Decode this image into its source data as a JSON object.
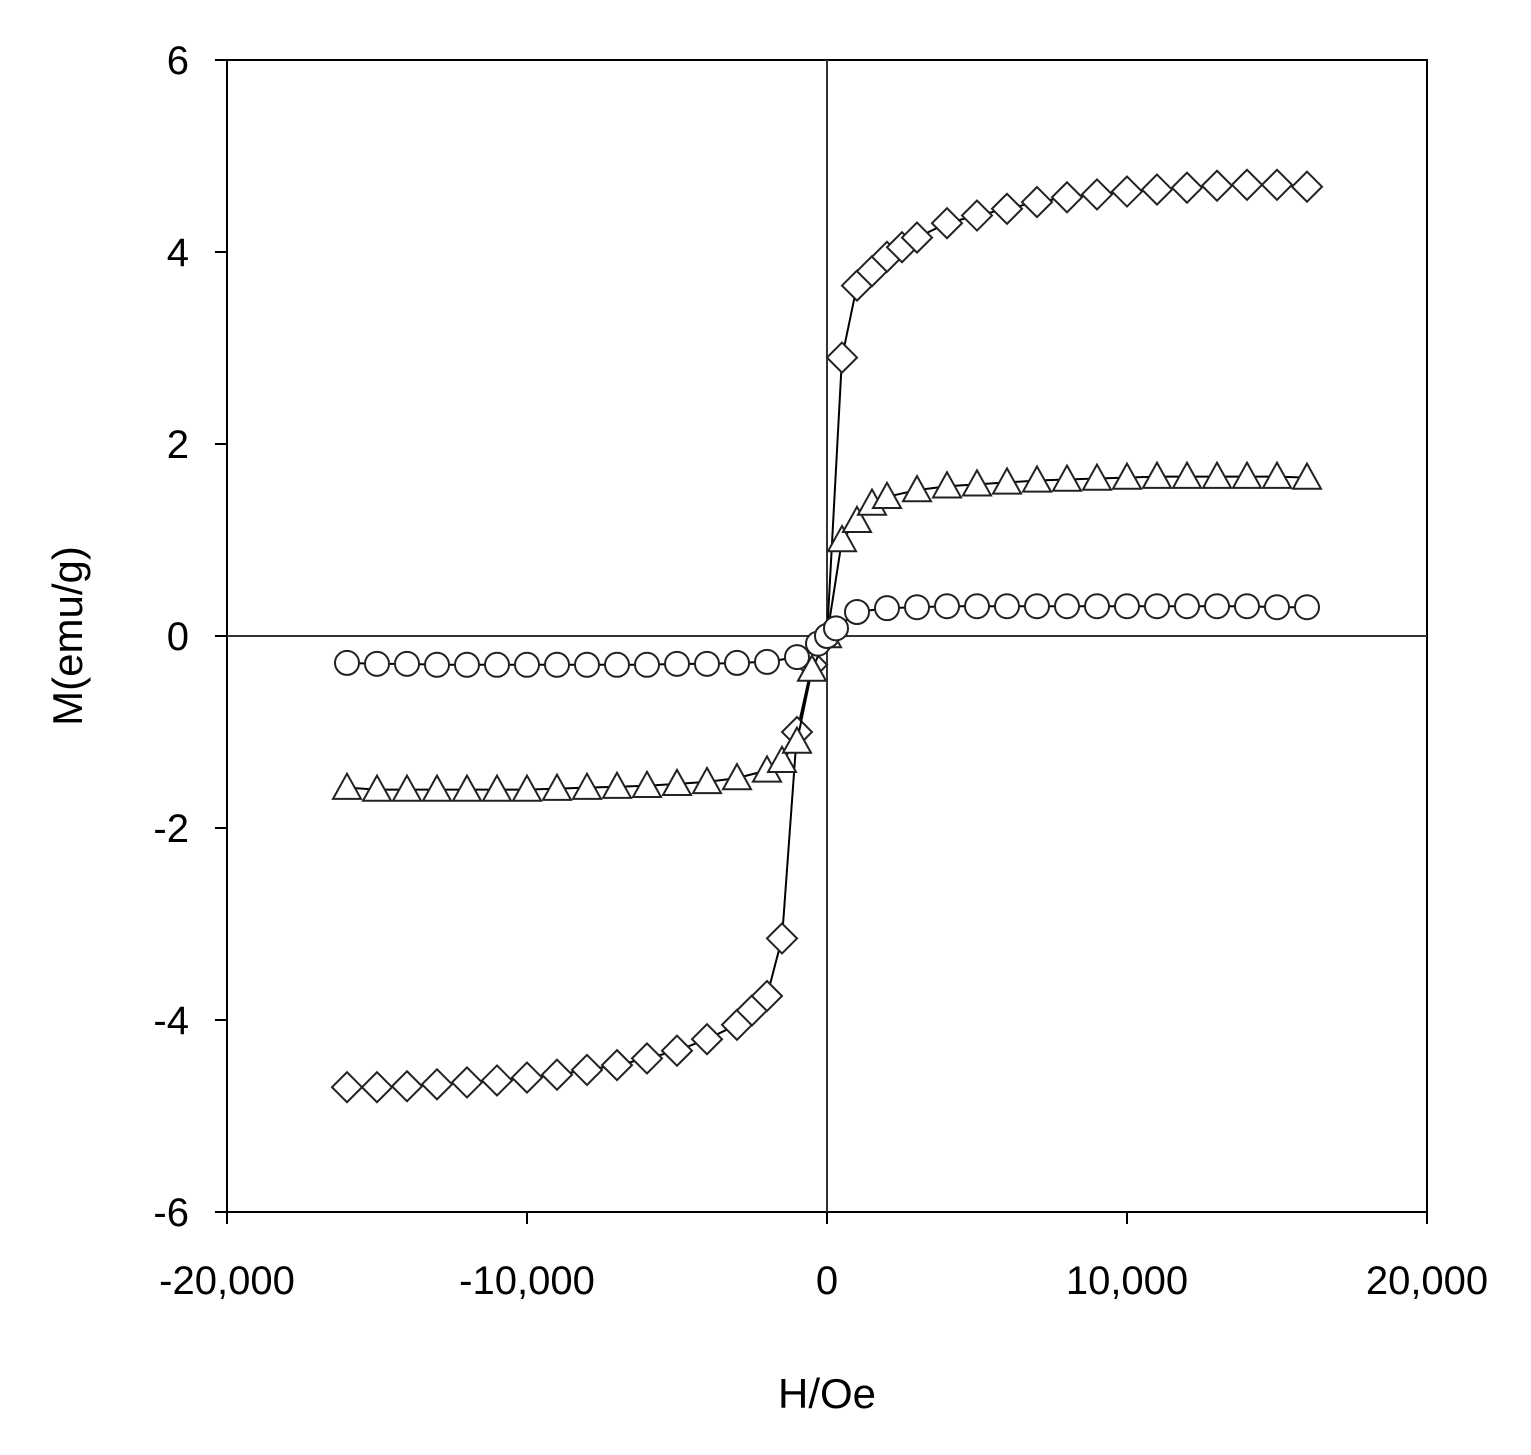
{
  "chart_data": {
    "type": "scatter",
    "title": "",
    "xlabel": "H/Oe",
    "ylabel": "M(emu/g)",
    "xlim": [
      -20000,
      20000
    ],
    "ylim": [
      -6,
      6
    ],
    "xticks": [
      -20000,
      -10000,
      0,
      10000,
      20000
    ],
    "xtick_labels": [
      "-20,000",
      "-10,000",
      "0",
      "10,000",
      "20,000"
    ],
    "yticks": [
      -6,
      -4,
      -2,
      0,
      2,
      4,
      6
    ],
    "ytick_labels": [
      "-6",
      "-4",
      "-2",
      "0",
      "2",
      "4",
      "6"
    ],
    "grid": false,
    "legend": "none",
    "series": [
      {
        "marker": "diamond",
        "x": [
          -16000,
          -15000,
          -14000,
          -13000,
          -12000,
          -11000,
          -10000,
          -9000,
          -8000,
          -7000,
          -6000,
          -5000,
          -4000,
          -3000,
          -2500,
          -2000,
          -1500,
          -1000,
          -500,
          0,
          500,
          1000,
          1500,
          2000,
          2500,
          3000,
          4000,
          5000,
          6000,
          7000,
          8000,
          9000,
          10000,
          11000,
          12000,
          13000,
          14000,
          15000,
          16000
        ],
        "y": [
          -4.7,
          -4.7,
          -4.69,
          -4.67,
          -4.65,
          -4.63,
          -4.6,
          -4.57,
          -4.52,
          -4.47,
          -4.4,
          -4.32,
          -4.2,
          -4.05,
          -3.9,
          -3.75,
          -3.15,
          -1.0,
          -0.3,
          0.0,
          2.9,
          3.65,
          3.8,
          3.95,
          4.05,
          4.15,
          4.3,
          4.38,
          4.45,
          4.52,
          4.57,
          4.6,
          4.63,
          4.65,
          4.67,
          4.69,
          4.7,
          4.7,
          4.68
        ]
      },
      {
        "marker": "triangle",
        "x": [
          -16000,
          -15000,
          -14000,
          -13000,
          -12000,
          -11000,
          -10000,
          -9000,
          -8000,
          -7000,
          -6000,
          -5000,
          -4000,
          -3000,
          -2000,
          -1500,
          -1000,
          -500,
          0,
          500,
          1000,
          1500,
          2000,
          3000,
          4000,
          5000,
          6000,
          7000,
          8000,
          9000,
          10000,
          11000,
          12000,
          13000,
          14000,
          15000,
          16000
        ],
        "y": [
          -1.58,
          -1.6,
          -1.6,
          -1.6,
          -1.6,
          -1.6,
          -1.6,
          -1.59,
          -1.58,
          -1.57,
          -1.56,
          -1.54,
          -1.52,
          -1.48,
          -1.4,
          -1.3,
          -1.1,
          -0.35,
          0.0,
          1.0,
          1.2,
          1.38,
          1.45,
          1.52,
          1.56,
          1.58,
          1.6,
          1.62,
          1.63,
          1.64,
          1.65,
          1.66,
          1.66,
          1.66,
          1.66,
          1.66,
          1.65
        ]
      },
      {
        "marker": "circle",
        "x": [
          -16000,
          -15000,
          -14000,
          -13000,
          -12000,
          -11000,
          -10000,
          -9000,
          -8000,
          -7000,
          -6000,
          -5000,
          -4000,
          -3000,
          -2000,
          -1000,
          -300,
          0,
          300,
          1000,
          2000,
          3000,
          4000,
          5000,
          6000,
          7000,
          8000,
          9000,
          10000,
          11000,
          12000,
          13000,
          14000,
          15000,
          16000
        ],
        "y": [
          -0.28,
          -0.29,
          -0.29,
          -0.3,
          -0.3,
          -0.3,
          -0.3,
          -0.3,
          -0.3,
          -0.3,
          -0.3,
          -0.29,
          -0.29,
          -0.28,
          -0.27,
          -0.22,
          -0.08,
          0.0,
          0.08,
          0.25,
          0.29,
          0.3,
          0.31,
          0.31,
          0.31,
          0.31,
          0.31,
          0.31,
          0.31,
          0.31,
          0.31,
          0.31,
          0.31,
          0.3,
          0.3
        ]
      }
    ]
  }
}
